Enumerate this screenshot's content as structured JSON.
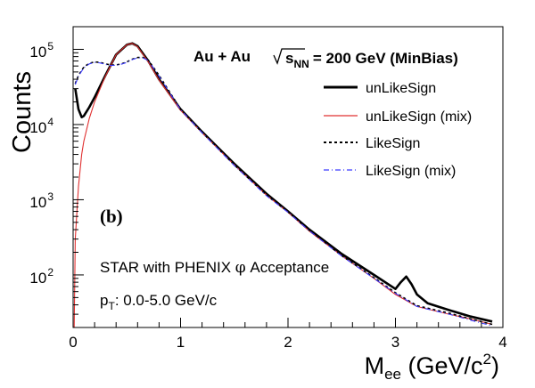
{
  "chart_data": {
    "type": "line",
    "title": "Au + Au   \\ s_NN = 200 GeV (MinBias)",
    "title_main": "Au + Au",
    "title_sqrt": "s",
    "title_sub": "NN",
    "title_rest": "= 200 GeV (MinBias)",
    "panel_label": "(b)",
    "annotation_1": "STAR with PHENIX φ Acceptance",
    "annotation_1_pre": "STAR with PHENIX ",
    "annotation_1_phi": "φ",
    "annotation_1_post": " Acceptance",
    "annotation_2_p": "p",
    "annotation_2_sub": "T",
    "annotation_2_rest": ": 0.0-5.0 GeV/c",
    "xlabel": "M_ee (GeV/c^2)",
    "xlabel_main": "M",
    "xlabel_sub": "ee",
    "xlabel_unit": " (GeV/c",
    "xlabel_sup": "2",
    "xlabel_close": ")",
    "ylabel": "Counts",
    "xlim": [
      0,
      4
    ],
    "ylim": [
      20,
      200000
    ],
    "yscale": "log",
    "x_ticks": [
      0,
      1,
      2,
      3,
      4
    ],
    "x_tick_labels": [
      "0",
      "1",
      "2",
      "3",
      "4"
    ],
    "y_ticks": [
      100,
      1000,
      10000,
      100000
    ],
    "y_tick_base": "10",
    "y_tick_exps": [
      "2",
      "3",
      "4",
      "5"
    ],
    "legend": [
      "unLikeSign",
      "unLikeSign (mix)",
      "LikeSign",
      "LikeSign (mix)"
    ],
    "legend_placement": "top-right",
    "grid": false,
    "series": [
      {
        "name": "unLikeSign",
        "color": "#000000",
        "style": "solid-thick",
        "x": [
          0.02,
          0.05,
          0.08,
          0.1,
          0.15,
          0.2,
          0.3,
          0.4,
          0.5,
          0.55,
          0.6,
          0.7,
          0.8,
          1.0,
          1.2,
          1.5,
          1.8,
          2.0,
          2.2,
          2.5,
          2.8,
          3.0,
          3.05,
          3.1,
          3.15,
          3.2,
          3.3,
          3.5,
          3.7,
          3.9
        ],
        "y": [
          30000,
          16000,
          12500,
          13000,
          17000,
          23000,
          45000,
          85000,
          115000,
          120000,
          110000,
          70000,
          40000,
          16000,
          8000,
          3000,
          1200,
          700,
          400,
          190,
          100,
          65,
          80,
          95,
          75,
          55,
          42,
          34,
          28,
          24
        ]
      },
      {
        "name": "unLikeSign (mix)",
        "color": "#e03030",
        "style": "solid-thin",
        "x": [
          0.01,
          0.02,
          0.05,
          0.08,
          0.1,
          0.15,
          0.2,
          0.3,
          0.4,
          0.5,
          0.55,
          0.6,
          0.7,
          0.8,
          1.0,
          1.2,
          1.5,
          1.8,
          2.0,
          2.2,
          2.5,
          2.8,
          3.0,
          3.2,
          3.5,
          3.7,
          3.9
        ],
        "y": [
          20,
          300,
          1500,
          4000,
          6000,
          12000,
          20000,
          44000,
          85000,
          115000,
          120000,
          108000,
          68000,
          39000,
          15500,
          7800,
          2900,
          1150,
          680,
          380,
          180,
          90,
          55,
          38,
          30,
          26,
          22
        ]
      },
      {
        "name": "LikeSign",
        "color": "#000000",
        "style": "dashed",
        "x": [
          0.02,
          0.05,
          0.1,
          0.15,
          0.2,
          0.25,
          0.3,
          0.35,
          0.4,
          0.45,
          0.5,
          0.55,
          0.6,
          0.65,
          0.7,
          0.8,
          1.0,
          1.2,
          1.5,
          1.8,
          2.0,
          2.2,
          2.5,
          2.8,
          3.0,
          3.2,
          3.5,
          3.7,
          3.9
        ],
        "y": [
          35000,
          45000,
          58000,
          65000,
          68000,
          67000,
          64000,
          62000,
          62000,
          64000,
          68000,
          74000,
          78000,
          78000,
          72000,
          45000,
          16000,
          7900,
          2900,
          1150,
          690,
          390,
          180,
          92,
          58,
          39,
          31,
          26,
          22
        ]
      },
      {
        "name": "LikeSign (mix)",
        "color": "#3a3aff",
        "style": "dash-dot",
        "x": [
          0.02,
          0.05,
          0.1,
          0.15,
          0.2,
          0.25,
          0.3,
          0.35,
          0.4,
          0.45,
          0.5,
          0.55,
          0.6,
          0.65,
          0.7,
          0.8,
          1.0,
          1.2,
          1.5,
          1.8,
          2.0,
          2.2,
          2.5,
          2.8,
          3.0,
          3.2,
          3.5,
          3.7,
          3.9
        ],
        "y": [
          34000,
          44000,
          57000,
          64000,
          67000,
          66000,
          63000,
          61000,
          61500,
          63500,
          67000,
          73000,
          77000,
          77000,
          71000,
          44000,
          15800,
          7800,
          2850,
          1130,
          680,
          385,
          178,
          90,
          57,
          38,
          30,
          25,
          21
        ]
      }
    ]
  }
}
